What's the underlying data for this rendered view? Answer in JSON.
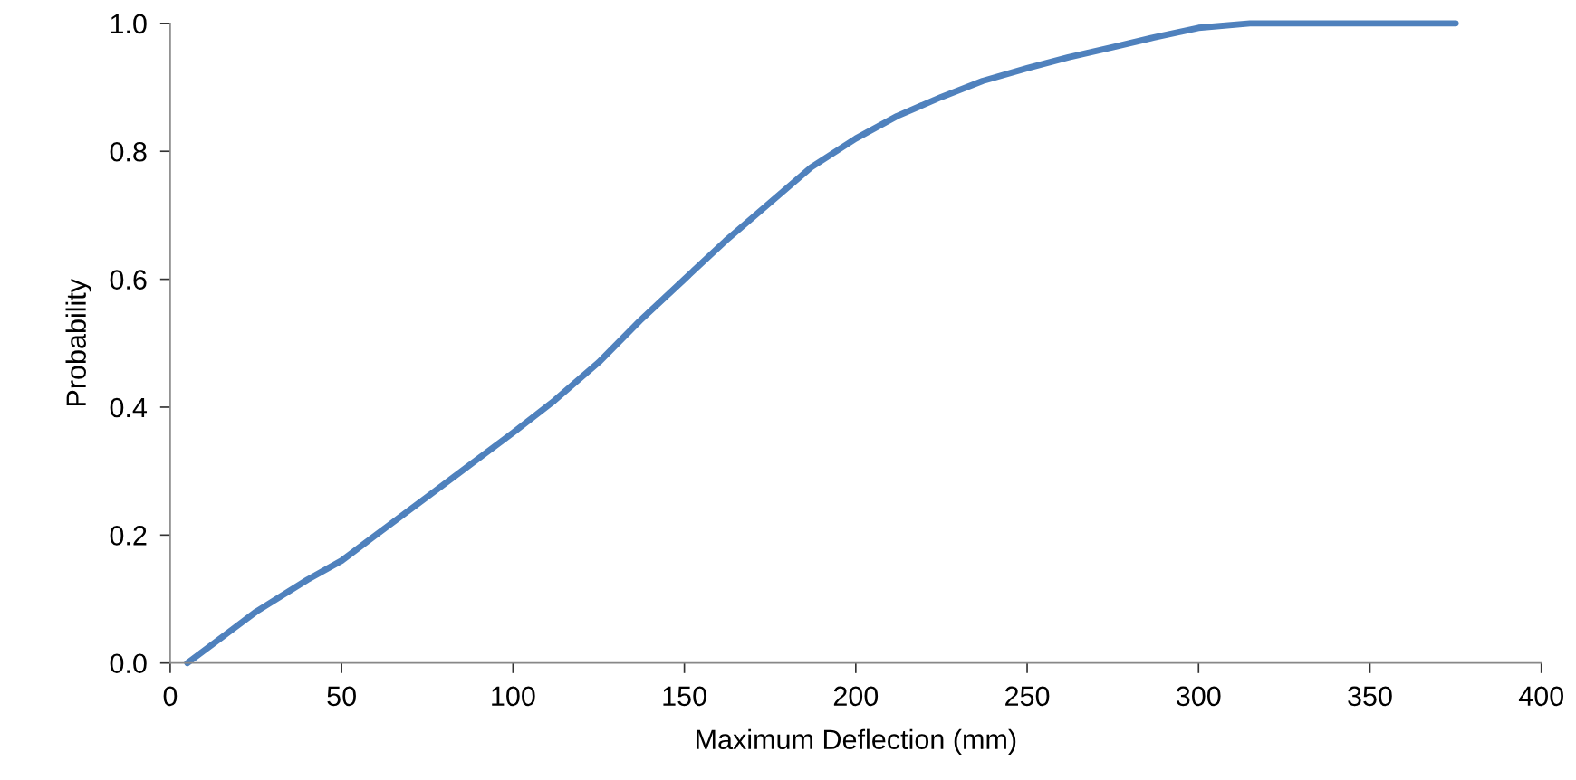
{
  "chart_data": {
    "type": "line",
    "xlabel": "Maximum Deflection (mm)",
    "ylabel": "Probability",
    "x": [
      5,
      15,
      25,
      40,
      50,
      60,
      75,
      90,
      100,
      112,
      125,
      137,
      150,
      162,
      175,
      187,
      200,
      212,
      225,
      237,
      250,
      262,
      275,
      287,
      300,
      315,
      330,
      345,
      360,
      375
    ],
    "series": [
      {
        "color": "#4f81bd",
        "values": [
          0.0,
          0.04,
          0.08,
          0.13,
          0.16,
          0.2,
          0.26,
          0.32,
          0.36,
          0.41,
          0.47,
          0.535,
          0.6,
          0.66,
          0.72,
          0.775,
          0.82,
          0.855,
          0.885,
          0.91,
          0.93,
          0.947,
          0.963,
          0.978,
          0.993,
          1.0,
          1.0,
          1.0,
          1.0,
          1.0
        ]
      }
    ],
    "xlim": [
      0,
      400
    ],
    "xticks": [
      0,
      50,
      100,
      150,
      200,
      250,
      300,
      350,
      400
    ],
    "ylim": [
      0,
      1.0
    ],
    "yticks": [
      {
        "value": 0,
        "label": "0.0"
      },
      {
        "value": 0.2,
        "label": "0.2"
      },
      {
        "value": 0.4,
        "label": "0.4"
      },
      {
        "value": 0.6,
        "label": "0.6"
      },
      {
        "value": 0.8,
        "label": "0.8"
      },
      {
        "value": 1.0,
        "label": "1.0"
      }
    ],
    "grid": false,
    "legend": false,
    "marker": "none",
    "line_style": "solid"
  }
}
